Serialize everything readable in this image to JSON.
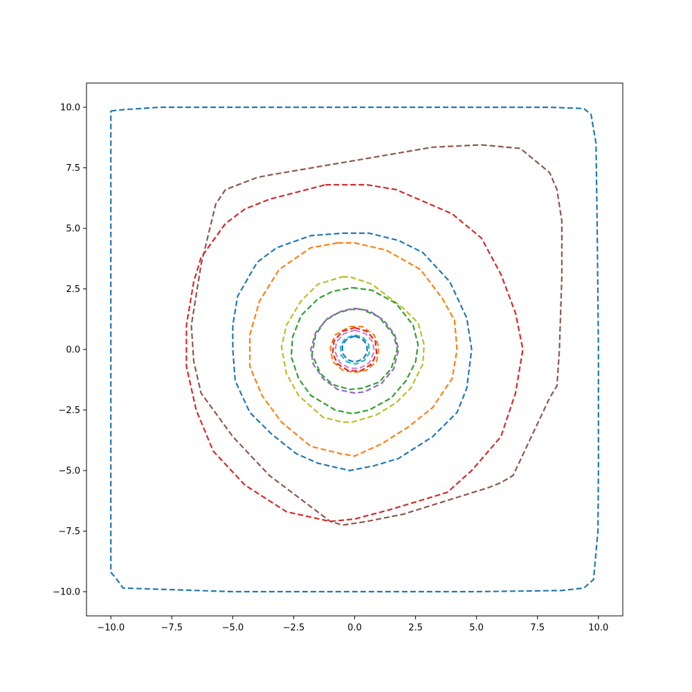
{
  "chart_data": {
    "type": "line",
    "title": "",
    "xlabel": "",
    "ylabel": "",
    "xlim": [
      -11,
      11
    ],
    "ylim": [
      -11,
      11
    ],
    "grid": false,
    "legend": "none",
    "line_style": "dashed",
    "x_ticks": [
      -10,
      -7.5,
      -5,
      -2.5,
      0,
      2.5,
      5,
      7.5,
      10
    ],
    "y_ticks": [
      -10,
      -7.5,
      -5,
      -2.5,
      0,
      2.5,
      5,
      7.5,
      10
    ],
    "x_tick_labels": [
      "−10.0",
      "−7.5",
      "−5.0",
      "−2.5",
      "0.0",
      "2.5",
      "5.0",
      "7.5",
      "10.0"
    ],
    "y_tick_labels": [
      "−10.0",
      "−7.5",
      "−5.0",
      "−2.5",
      "0.0",
      "2.5",
      "5.0",
      "7.5",
      "10.0"
    ],
    "series": [
      {
        "color": "#1f77b4",
        "points": [
          [
            -10,
            9.85
          ],
          [
            -9.5,
            9.9
          ],
          [
            -8,
            10
          ],
          [
            -5,
            10
          ],
          [
            0,
            10
          ],
          [
            5,
            10
          ],
          [
            8,
            10
          ],
          [
            9.4,
            9.95
          ],
          [
            9.7,
            9.7
          ],
          [
            9.9,
            8.5
          ],
          [
            9.95,
            5
          ],
          [
            10,
            0
          ],
          [
            10,
            -5
          ],
          [
            9.98,
            -7.5
          ],
          [
            9.8,
            -9.5
          ],
          [
            9.4,
            -9.85
          ],
          [
            8.5,
            -9.95
          ],
          [
            5,
            -10
          ],
          [
            0,
            -10
          ],
          [
            -5,
            -10
          ],
          [
            -9.5,
            -9.85
          ],
          [
            -9.75,
            -9.5
          ],
          [
            -10,
            -9.2
          ],
          [
            -10,
            -5
          ],
          [
            -10,
            0
          ],
          [
            -10,
            5
          ],
          [
            -10,
            9.85
          ]
        ]
      },
      {
        "color": "#8c564b",
        "points": [
          [
            5.2,
            8.45
          ],
          [
            6.8,
            8.3
          ],
          [
            8,
            7.3
          ],
          [
            8.3,
            6.6
          ],
          [
            8.5,
            5.3
          ],
          [
            8.5,
            3
          ],
          [
            8.4,
            0
          ],
          [
            8.3,
            -1.5
          ],
          [
            8.0,
            -2
          ],
          [
            6.5,
            -5.2
          ],
          [
            6,
            -5.5
          ],
          [
            5.5,
            -5.7
          ],
          [
            2,
            -6.8
          ],
          [
            0.5,
            -7.1
          ],
          [
            -0.5,
            -7.25
          ],
          [
            -1,
            -7.1
          ],
          [
            -3.5,
            -5.2
          ],
          [
            -5,
            -3.6
          ],
          [
            -6.3,
            -1.8
          ],
          [
            -6.6,
            -0.5
          ],
          [
            -6.7,
            1
          ],
          [
            -6.3,
            3.5
          ],
          [
            -5.7,
            6
          ],
          [
            -5.3,
            6.6
          ],
          [
            -4,
            7.1
          ],
          [
            -3.5,
            7.2
          ],
          [
            0,
            7.8
          ],
          [
            3.2,
            8.35
          ],
          [
            5.2,
            8.45
          ]
        ]
      },
      {
        "color": "#d62728",
        "points": [
          [
            -1.2,
            6.8
          ],
          [
            0.5,
            6.8
          ],
          [
            1.7,
            6.6
          ],
          [
            4,
            5.6
          ],
          [
            5.2,
            4.6
          ],
          [
            6.0,
            3.1
          ],
          [
            6.6,
            1.5
          ],
          [
            6.9,
            0
          ],
          [
            6.6,
            -1.8
          ],
          [
            6,
            -3.6
          ],
          [
            4.8,
            -5
          ],
          [
            3.8,
            -5.9
          ],
          [
            1.5,
            -6.6
          ],
          [
            0,
            -7
          ],
          [
            -1,
            -7.1
          ],
          [
            -2.8,
            -6.7
          ],
          [
            -4.5,
            -5.6
          ],
          [
            -5.8,
            -4.2
          ],
          [
            -6.5,
            -2.5
          ],
          [
            -6.9,
            -0.7
          ],
          [
            -6.9,
            1
          ],
          [
            -6.6,
            2.8
          ],
          [
            -6.3,
            3.8
          ],
          [
            -5.3,
            5.2
          ],
          [
            -4.5,
            5.8
          ],
          [
            -3.5,
            6.2
          ],
          [
            -1.2,
            6.8
          ]
        ]
      },
      {
        "color": "#1f77b4",
        "points": [
          [
            -0.5,
            4.8
          ],
          [
            0.6,
            4.8
          ],
          [
            1.8,
            4.5
          ],
          [
            2.8,
            4
          ],
          [
            3.9,
            2.8
          ],
          [
            4.6,
            1.3
          ],
          [
            4.8,
            0
          ],
          [
            4.6,
            -1.6
          ],
          [
            4.2,
            -2.6
          ],
          [
            3.2,
            -3.6
          ],
          [
            1.8,
            -4.5
          ],
          [
            0.8,
            -4.8
          ],
          [
            -0.2,
            -5
          ],
          [
            -1.5,
            -4.7
          ],
          [
            -2.4,
            -4.3
          ],
          [
            -3.4,
            -3.5
          ],
          [
            -4.3,
            -2.6
          ],
          [
            -4.9,
            -1.3
          ],
          [
            -5,
            0
          ],
          [
            -5,
            1
          ],
          [
            -4.8,
            2.2
          ],
          [
            -4,
            3.6
          ],
          [
            -3.2,
            4.2
          ],
          [
            -1.8,
            4.7
          ],
          [
            -0.5,
            4.8
          ]
        ]
      },
      {
        "color": "#ff7f0e",
        "points": [
          [
            -0.7,
            4.4
          ],
          [
            0,
            4.4
          ],
          [
            1.3,
            4.1
          ],
          [
            2.7,
            3.3
          ],
          [
            3.6,
            2.1
          ],
          [
            4.1,
            1.2
          ],
          [
            4.2,
            0
          ],
          [
            4.0,
            -1.2
          ],
          [
            3.2,
            -2.4
          ],
          [
            2.2,
            -3.2
          ],
          [
            1.1,
            -3.9
          ],
          [
            0,
            -4.4
          ],
          [
            -0.6,
            -4.3
          ],
          [
            -1.8,
            -4
          ],
          [
            -3,
            -3
          ],
          [
            -3.8,
            -1.9
          ],
          [
            -4.3,
            -0.7
          ],
          [
            -4.3,
            0.6
          ],
          [
            -3.9,
            2
          ],
          [
            -3.1,
            3.3
          ],
          [
            -1.8,
            4.2
          ],
          [
            -0.7,
            4.4
          ]
        ]
      },
      {
        "color": "#bcbd22",
        "points": [
          [
            -0.5,
            3
          ],
          [
            -0.2,
            3
          ],
          [
            0.7,
            2.7
          ],
          [
            2,
            1.7
          ],
          [
            2.6,
            1.1
          ],
          [
            2.85,
            0.2
          ],
          [
            2.8,
            -0.6
          ],
          [
            2.3,
            -1.6
          ],
          [
            1.7,
            -2.2
          ],
          [
            0.9,
            -2.7
          ],
          [
            -0.1,
            -3
          ],
          [
            -0.5,
            -3
          ],
          [
            -1.3,
            -2.8
          ],
          [
            -2.3,
            -1.9
          ],
          [
            -2.8,
            -1
          ],
          [
            -3,
            0.1
          ],
          [
            -2.8,
            1
          ],
          [
            -2.2,
            2
          ],
          [
            -1.5,
            2.7
          ],
          [
            -0.5,
            3
          ]
        ]
      },
      {
        "color": "#2ca02c",
        "points": [
          [
            -0.1,
            2.55
          ],
          [
            0.7,
            2.45
          ],
          [
            1.7,
            1.9
          ],
          [
            2.4,
            1
          ],
          [
            2.6,
            0.2
          ],
          [
            2.5,
            -0.5
          ],
          [
            2.1,
            -1.3
          ],
          [
            1.5,
            -2
          ],
          [
            0.6,
            -2.5
          ],
          [
            -0.1,
            -2.65
          ],
          [
            -0.8,
            -2.5
          ],
          [
            -1.8,
            -1.9
          ],
          [
            -2.3,
            -1.2
          ],
          [
            -2.6,
            -0.3
          ],
          [
            -2.55,
            0.5
          ],
          [
            -2.2,
            1.4
          ],
          [
            -1.5,
            2.1
          ],
          [
            -0.9,
            2.4
          ],
          [
            -0.1,
            2.55
          ]
        ]
      },
      {
        "color": "#2ca02c",
        "points": [
          [
            -0.2,
            1.65
          ],
          [
            0.3,
            1.65
          ],
          [
            1,
            1.35
          ],
          [
            1.6,
            0.6
          ],
          [
            1.75,
            0
          ],
          [
            1.5,
            -0.8
          ],
          [
            1,
            -1.35
          ],
          [
            0.3,
            -1.6
          ],
          [
            -0.2,
            -1.65
          ],
          [
            -0.9,
            -1.45
          ],
          [
            -1.4,
            -1
          ],
          [
            -1.75,
            -0.2
          ],
          [
            -1.6,
            0.6
          ],
          [
            -1.2,
            1.2
          ],
          [
            -0.7,
            1.5
          ],
          [
            -0.2,
            1.65
          ]
        ]
      },
      {
        "color": "#9467bd",
        "points": [
          [
            0,
            1.7
          ],
          [
            0.6,
            1.6
          ],
          [
            1.2,
            1.2
          ],
          [
            1.65,
            0.6
          ],
          [
            1.8,
            0
          ],
          [
            1.6,
            -0.8
          ],
          [
            1.1,
            -1.4
          ],
          [
            0.4,
            -1.75
          ],
          [
            0,
            -1.8
          ],
          [
            -0.7,
            -1.65
          ],
          [
            -1.3,
            -1.2
          ],
          [
            -1.7,
            -0.6
          ],
          [
            -1.8,
            0
          ],
          [
            -1.6,
            0.7
          ],
          [
            -1.1,
            1.3
          ],
          [
            -0.5,
            1.6
          ],
          [
            0,
            1.7
          ]
        ]
      },
      {
        "color": "#ff7f0e",
        "points": [
          [
            -0.2,
            0.95
          ],
          [
            0.3,
            0.95
          ],
          [
            0.8,
            0.6
          ],
          [
            1.0,
            0.1
          ],
          [
            0.9,
            -0.5
          ],
          [
            0.5,
            -0.85
          ],
          [
            0,
            -0.95
          ],
          [
            -0.5,
            -0.85
          ],
          [
            -0.9,
            -0.5
          ],
          [
            -1.0,
            0.1
          ],
          [
            -0.8,
            0.6
          ],
          [
            -0.2,
            0.95
          ]
        ]
      },
      {
        "color": "#d62728",
        "points": [
          [
            0,
            0.9
          ],
          [
            0.5,
            0.75
          ],
          [
            0.85,
            0.35
          ],
          [
            0.9,
            -0.15
          ],
          [
            0.7,
            -0.6
          ],
          [
            0.25,
            -0.88
          ],
          [
            -0.25,
            -0.88
          ],
          [
            -0.7,
            -0.6
          ],
          [
            -0.9,
            -0.15
          ],
          [
            -0.85,
            0.35
          ],
          [
            -0.5,
            0.75
          ],
          [
            0,
            0.9
          ]
        ]
      },
      {
        "color": "#e377c2",
        "points": [
          [
            0,
            0.8
          ],
          [
            0.45,
            0.65
          ],
          [
            0.75,
            0.3
          ],
          [
            0.8,
            -0.1
          ],
          [
            0.6,
            -0.55
          ],
          [
            0.2,
            -0.78
          ],
          [
            -0.2,
            -0.78
          ],
          [
            -0.6,
            -0.55
          ],
          [
            -0.8,
            -0.1
          ],
          [
            -0.75,
            0.3
          ],
          [
            -0.45,
            0.65
          ],
          [
            0,
            0.8
          ]
        ]
      },
      {
        "color": "#17becf",
        "points": [
          [
            0,
            0.6
          ],
          [
            0.35,
            0.5
          ],
          [
            0.58,
            0.2
          ],
          [
            0.6,
            -0.15
          ],
          [
            0.4,
            -0.45
          ],
          [
            0.05,
            -0.6
          ],
          [
            -0.3,
            -0.52
          ],
          [
            -0.55,
            -0.25
          ],
          [
            -0.58,
            0.15
          ],
          [
            -0.4,
            0.45
          ],
          [
            0,
            0.6
          ]
        ]
      },
      {
        "color": "#1f77b4",
        "points": [
          [
            0,
            0.55
          ],
          [
            0.3,
            0.45
          ],
          [
            0.5,
            0.2
          ],
          [
            0.52,
            -0.1
          ],
          [
            0.35,
            -0.4
          ],
          [
            0,
            -0.52
          ],
          [
            -0.3,
            -0.42
          ],
          [
            -0.5,
            -0.15
          ],
          [
            -0.5,
            0.2
          ],
          [
            -0.3,
            0.45
          ],
          [
            0,
            0.55
          ]
        ]
      }
    ]
  }
}
